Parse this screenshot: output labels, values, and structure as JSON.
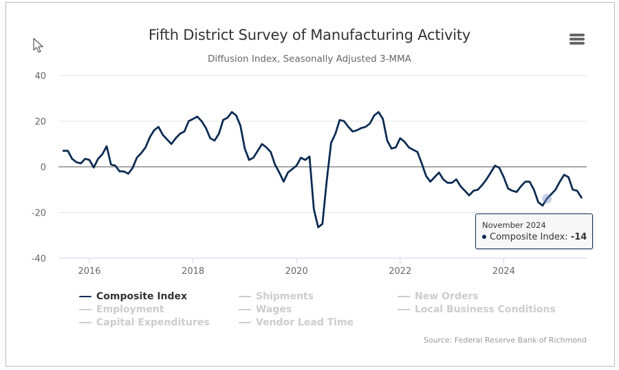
{
  "page": {
    "title": "Fifth District Survey of Manufacturing Activity",
    "subtitle": "Diffusion Index, Seasonally Adjusted 3-MMA",
    "source": "Source: Federal Reserve Bank of Richmond",
    "menu_icon": "hamburger-menu-icon",
    "accent_color": "#0b2b52",
    "inactive_color": "#cccccc"
  },
  "legend": [
    {
      "label": "Composite Index",
      "active": true
    },
    {
      "label": "Shipments",
      "active": false
    },
    {
      "label": "New Orders",
      "active": false
    },
    {
      "label": "Employment",
      "active": false
    },
    {
      "label": "Wages",
      "active": false
    },
    {
      "label": "Local Business Conditions",
      "active": false
    },
    {
      "label": "Capital Expenditures",
      "active": false
    },
    {
      "label": "Vendor Lead Time",
      "active": false
    }
  ],
  "tooltip": {
    "date": "November 2024",
    "series": "Composite Index:",
    "value": "-14"
  },
  "chart_data": {
    "type": "line",
    "title": "Fifth District Survey of Manufacturing Activity",
    "subtitle": "Diffusion Index, Seasonally Adjusted 3-MMA",
    "xlabel": "",
    "ylabel": "",
    "ylim": [
      -40,
      40
    ],
    "yticks": [
      40,
      20,
      0,
      -20,
      -40
    ],
    "xticks": [
      "2016",
      "2018",
      "2020",
      "2022",
      "2024"
    ],
    "x_start": "2015-07",
    "x_end": "2025-07",
    "x_frequency": "monthly",
    "grid": true,
    "legend_position": "bottom",
    "highlighted_point": {
      "x": "2024-11",
      "value": -14
    },
    "series": [
      {
        "name": "Composite Index",
        "color": "#0b2b52",
        "visible": true,
        "values": [
          7,
          7,
          3.5,
          2,
          1.5,
          3.5,
          3,
          -0.3,
          3.5,
          5.5,
          9,
          1,
          0.5,
          -2,
          -2,
          -3,
          -0.5,
          4,
          6,
          8.5,
          13,
          16,
          17.5,
          14,
          12,
          10,
          12.5,
          14.5,
          15.5,
          20,
          21,
          22,
          20,
          17,
          12.5,
          11.5,
          14.5,
          20.5,
          21.5,
          24,
          22.5,
          18,
          8,
          3,
          4,
          7,
          10,
          8.5,
          6.5,
          1,
          -2.5,
          -6.5,
          -2.5,
          -1,
          0.5,
          4,
          3,
          4.5,
          -18.5,
          -26.5,
          -25,
          -6,
          10.5,
          14.5,
          20.5,
          20,
          17.5,
          15.5,
          16,
          17,
          17.5,
          19,
          22.5,
          24,
          21,
          11.5,
          8,
          8.5,
          12.5,
          11,
          8.5,
          7.5,
          6.5,
          1.5,
          -4,
          -6.5,
          -4.5,
          -2.5,
          -5.5,
          -7,
          -7,
          -5.5,
          -8.5,
          -10.5,
          -12.5,
          -10.5,
          -10,
          -8,
          -5.5,
          -2.5,
          0.5,
          -0.5,
          -4.5,
          -9.5,
          -10.5,
          -11,
          -8.5,
          -6.5,
          -6.5,
          -10,
          -15.5,
          -17,
          -14,
          -12,
          -10,
          -6.5,
          -3.5,
          -4.5,
          -10,
          -10.5,
          -13.5
        ]
      },
      {
        "name": "Shipments",
        "visible": false
      },
      {
        "name": "New Orders",
        "visible": false
      },
      {
        "name": "Employment",
        "visible": false
      },
      {
        "name": "Wages",
        "visible": false
      },
      {
        "name": "Local Business Conditions",
        "visible": false
      },
      {
        "name": "Capital Expenditures",
        "visible": false
      },
      {
        "name": "Vendor Lead Time",
        "visible": false
      }
    ]
  }
}
